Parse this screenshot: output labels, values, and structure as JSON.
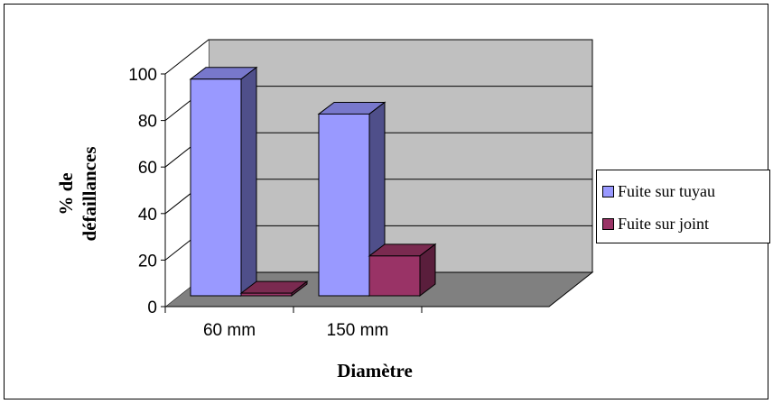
{
  "colors": {
    "series1_front": "#9999ff",
    "series1_side": "#4f4f8a",
    "series1_top": "#7878cc",
    "series2_front": "#993366",
    "series2_side": "#5a1e3c",
    "series2_top": "#7a2a50",
    "wall_back": "#c0c0c0",
    "floor": "#808080"
  },
  "chart_data": {
    "type": "bar",
    "categories": [
      "60  mm",
      "150  mm"
    ],
    "series": [
      {
        "name": "Fuite sur tuyau",
        "values": [
          97,
          82
        ]
      },
      {
        "name": "Fuite sur joint",
        "values": [
          5,
          21
        ]
      }
    ],
    "xlabel": "Diamètre",
    "ylabel_lines": [
      "% de",
      "défaillances"
    ],
    "ylim": [
      0,
      100
    ],
    "yticks": [
      0,
      20,
      40,
      60,
      80,
      100
    ],
    "grid": true,
    "legend_position": "right",
    "three_d": true
  }
}
